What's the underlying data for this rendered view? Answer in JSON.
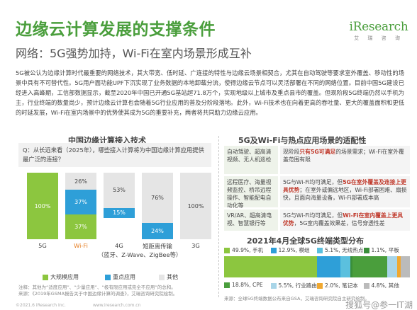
{
  "header": {
    "title": "边缘云计算发展的支撑条件",
    "subtitle": "网络：5G强势加持，Wi-Fi在室内场景形成互补",
    "logo_mark": "iResearch",
    "logo_sub": "艾 瑞 咨 询"
  },
  "body_text": "5G被公认为边缘计算时代最重要的网络技术，其大带宽、低时延、广连接的特性与边缘云场景相契合，尤其在自动驾驶等要求室外覆盖、移动性的场景中具有不可替代性。5G用户面功能UPF下沉实现了业务数据的本地卸载分流，使得边缘云节点可以灵活部署在不同的网络位置。目前中国5G建设已经进入高峰期，工信部数据显示，截至2020年中国已开通5G基站超71.8万个，实现地级以上城市及重点县市的覆盖。但现阶段5G终端仍然以手机为主，行业终端的数量尚少，预计边缘云计算也会随着5G行业应用的普及分阶段落地。此外，Wi-Fi技术也在向着更高的吞吐量、更大的覆盖面积和更低的时延发展，Wi-Fi在室内场景中的优势使其成为5G的重要补充，两者将共同助力边缘云应用。",
  "left_section": {
    "title": "中国边缘计算接入技术",
    "question": "Q：从长远来看（2025年），哪些接入计算将为中国边缘计算应用提供最广泛的连接？",
    "legend": [
      "大规模应用",
      "重点应用",
      "其他"
    ],
    "note": "注释：其他为“适度应用”、“少量应用”、“极有限应用或完全不应用”的总和。",
    "source": "来源：《2019年GSMA报告关于中国边缘计算的调查》，艾瑞咨询研究院绘制。"
  },
  "chart_data": {
    "type": "bar",
    "stacked": true,
    "categories": [
      "5G",
      "Wi-Fi",
      "4G\n（蓝牙、Z-Wave、ZigBee等）",
      "短距离传输",
      "3G"
    ],
    "x_labels": [
      "5G",
      "Wi-Fi",
      "4G",
      "短距离传输",
      "3G"
    ],
    "x_sublabels": [
      "",
      "",
      "（蓝牙、Z-Wave、ZigBee等）",
      "",
      ""
    ],
    "series": [
      {
        "name": "大规模应用",
        "color": "#8cc63f",
        "values": [
          100,
          37,
          0,
          0,
          0
        ]
      },
      {
        "name": "重点应用",
        "color": "#2e9fd8",
        "values": [
          0,
          37,
          15,
          24,
          0
        ]
      },
      {
        "name": "其他",
        "color": "#e5e5e5",
        "values": [
          0,
          26,
          53,
          76,
          100
        ]
      }
    ],
    "labels": [
      [
        "100%",
        "",
        ""
      ],
      [
        "37%",
        "37%",
        "26%"
      ],
      [
        "",
        "15%",
        "53%"
      ],
      [
        "",
        "24%",
        "76%"
      ],
      [
        "",
        "",
        "100%"
      ]
    ],
    "ylim": [
      0,
      100
    ],
    "grid": false,
    "legend_position": "bottom"
  },
  "right_section": {
    "table_title": "5G及Wi-Fi与热点应用场景的适配性",
    "rows": [
      {
        "scene": "自动驾驶、超高清视频、无人机巡检",
        "desc_pre": "现阶段",
        "desc_em": "只有5G可满足",
        "desc_post": "的场景需求；Wi-Fi在室外覆盖范围有限"
      },
      {
        "scene": "远程医疗、海量视频监控、桥吊远程操作、智能配电自动化等",
        "desc_pre": "5G与Wi-Fi均可满足，但",
        "desc_em": "5G在室外覆盖及连接上更具优势",
        "desc_post": "；在室外或偏远地区，Wi-Fi部署困难、扇损快，且面向海量设备，Wi-Fi部署成本高"
      },
      {
        "scene": "VR/AR、超高清电视、智慧银行等",
        "desc_pre": "5G与Wi-Fi均可满足，但",
        "desc_em": "Wi-Fi在室内覆盖上更具优势",
        "desc_post": "，5G室内覆盖效果差，信号穿透性差"
      }
    ],
    "pie_title": "2021年4月全球5G终端类型分布",
    "pie_items": [
      {
        "label": "49.9%, 手机",
        "value": 49.9,
        "color": "#8cc63f"
      },
      {
        "label": "12.9%, 模组",
        "value": 12.9,
        "color": "#2e9fd8"
      },
      {
        "label": "5.1%, 无线热点",
        "value": 5.1,
        "color": "#5bc0de"
      },
      {
        "label": "1.1%, 平板",
        "value": 1.1,
        "color": "#3a8f3a"
      },
      {
        "label": "18.8%, CPE",
        "value": 18.8,
        "color": "#4a9e3c"
      },
      {
        "label": "5.5%, 行业路由器",
        "value": 5.5,
        "color": "#a8d5e8"
      },
      {
        "label": "2.0%, 笔记本",
        "value": 2.0,
        "color": "#f0a830"
      },
      {
        "label": "4.8%, 其他",
        "value": 4.8,
        "color": "#bbbbbb"
      }
    ],
    "pie_source": "来源：全球5G终端数据公布来自GSA，艾瑞咨询研究院自主研究绘制。"
  },
  "footer": {
    "copyright": "©2021.6 iResearch Inc.",
    "site": "www.iresearch.com.cn",
    "watermark": "搜狐号@参一IT湖"
  }
}
